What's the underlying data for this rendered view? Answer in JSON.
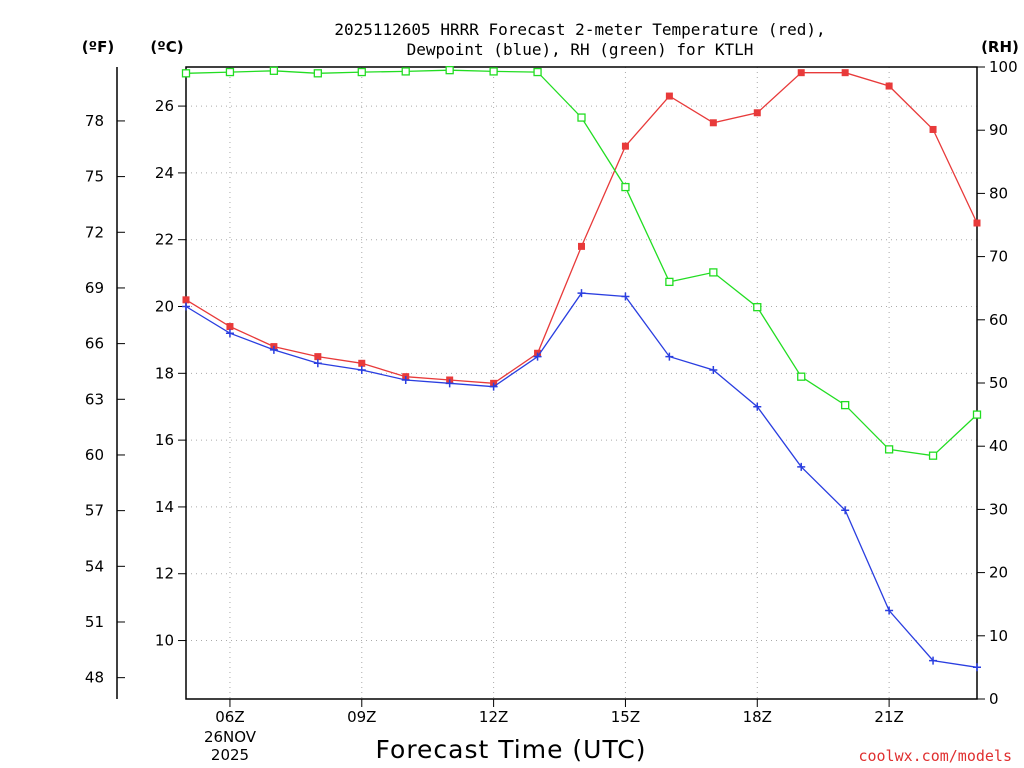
{
  "chart_data": {
    "type": "line",
    "title_line1": "2025112605 HRRR Forecast 2-meter Temperature (red),",
    "title_line2": "Dewpoint (blue), RH (green) for KTLH",
    "xlabel": "Forecast Time (UTC)",
    "credit": "coolwx.com/models",
    "units": {
      "fahrenheit": "(ºF)",
      "celsius": "(ºC)",
      "rh": "(RH)"
    },
    "x_range": [
      5,
      23
    ],
    "x_ticks": [
      {
        "hour": 6,
        "label": "06Z"
      },
      {
        "hour": 9,
        "label": "09Z"
      },
      {
        "hour": 12,
        "label": "12Z"
      },
      {
        "hour": 15,
        "label": "15Z"
      },
      {
        "hour": 18,
        "label": "18Z"
      },
      {
        "hour": 21,
        "label": "21Z"
      }
    ],
    "date_label": [
      "26NOV",
      "2025"
    ],
    "celsius_axis": {
      "range": [
        8.25,
        27.17
      ],
      "ticks": [
        10,
        12,
        14,
        16,
        18,
        20,
        22,
        24,
        26
      ]
    },
    "fahrenheit_ticks": [
      48,
      51,
      54,
      57,
      60,
      63,
      66,
      69,
      72,
      75,
      78
    ],
    "rh_axis": {
      "range": [
        0,
        100
      ],
      "ticks": [
        0,
        10,
        20,
        30,
        40,
        50,
        60,
        70,
        80,
        90,
        100
      ]
    },
    "hours": [
      5,
      6,
      7,
      8,
      9,
      10,
      11,
      12,
      13,
      14,
      15,
      16,
      17,
      18,
      19,
      20,
      21,
      22,
      23
    ],
    "series": [
      {
        "name": "Temperature",
        "color": "#e83a3a",
        "marker": "filled-square",
        "axis": "celsius",
        "values": [
          20.2,
          19.4,
          18.8,
          18.5,
          18.3,
          17.9,
          17.8,
          17.7,
          18.6,
          21.8,
          24.8,
          26.3,
          25.5,
          25.8,
          27.0,
          27.0,
          26.6,
          25.3,
          22.5
        ]
      },
      {
        "name": "Dewpoint",
        "color": "#2a3ee0",
        "marker": "plus",
        "axis": "celsius",
        "values": [
          20.0,
          19.2,
          18.7,
          18.3,
          18.1,
          17.8,
          17.7,
          17.6,
          18.5,
          20.4,
          20.3,
          18.5,
          18.1,
          17.0,
          15.2,
          13.9,
          10.9,
          9.4,
          9.2
        ]
      },
      {
        "name": "RH",
        "color": "#22dd22",
        "marker": "open-square",
        "axis": "rh",
        "values": [
          99.0,
          99.2,
          99.4,
          99.0,
          99.2,
          99.3,
          99.5,
          99.3,
          99.2,
          92.0,
          81.0,
          66.0,
          67.5,
          62.0,
          51.0,
          46.5,
          39.5,
          38.5,
          45.0
        ]
      }
    ]
  }
}
